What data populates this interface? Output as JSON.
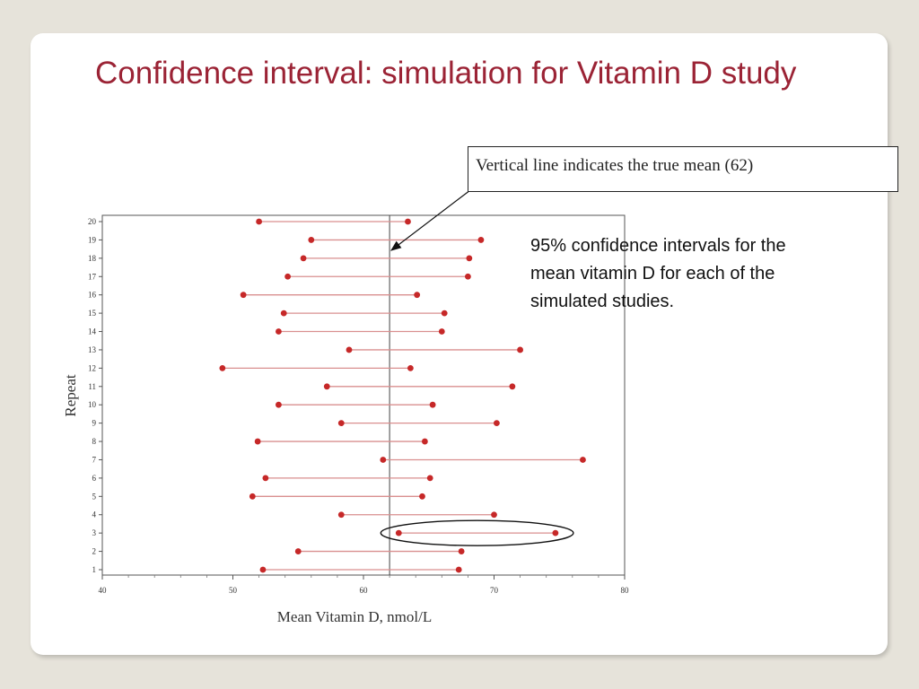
{
  "slide": {
    "title": "Confidence interval: simulation for Vitamin D study",
    "callout": "Vertical line indicates the true mean (62)",
    "annotation": "95% confidence intervals for the mean vitamin D for each of the simulated studies."
  },
  "colors": {
    "title": "#9b2335",
    "interval": "#c62828",
    "interval_line": "#d98f8f",
    "background": "#e6e3da"
  },
  "chart_data": {
    "type": "interval",
    "title": "",
    "xlabel": "Mean Vitamin D, nmol/L",
    "ylabel": "Repeat",
    "xlim": [
      40,
      80
    ],
    "xticks": [
      40,
      50,
      60,
      70,
      80
    ],
    "reference_line": {
      "x": 62
    },
    "highlighted_repeat": 3,
    "intervals": [
      {
        "repeat": 1,
        "lower": 52.3,
        "upper": 67.3
      },
      {
        "repeat": 2,
        "lower": 55.0,
        "upper": 67.5
      },
      {
        "repeat": 3,
        "lower": 62.7,
        "upper": 74.7
      },
      {
        "repeat": 4,
        "lower": 58.3,
        "upper": 70.0
      },
      {
        "repeat": 5,
        "lower": 51.5,
        "upper": 64.5
      },
      {
        "repeat": 6,
        "lower": 52.5,
        "upper": 65.1
      },
      {
        "repeat": 7,
        "lower": 61.5,
        "upper": 76.8
      },
      {
        "repeat": 8,
        "lower": 51.9,
        "upper": 64.7
      },
      {
        "repeat": 9,
        "lower": 58.3,
        "upper": 70.2
      },
      {
        "repeat": 10,
        "lower": 53.5,
        "upper": 65.3
      },
      {
        "repeat": 11,
        "lower": 57.2,
        "upper": 71.4
      },
      {
        "repeat": 12,
        "lower": 49.2,
        "upper": 63.6
      },
      {
        "repeat": 13,
        "lower": 58.9,
        "upper": 72.0
      },
      {
        "repeat": 14,
        "lower": 53.5,
        "upper": 66.0
      },
      {
        "repeat": 15,
        "lower": 53.9,
        "upper": 66.2
      },
      {
        "repeat": 16,
        "lower": 50.8,
        "upper": 64.1
      },
      {
        "repeat": 17,
        "lower": 54.2,
        "upper": 68.0
      },
      {
        "repeat": 18,
        "lower": 55.4,
        "upper": 68.1
      },
      {
        "repeat": 19,
        "lower": 56.0,
        "upper": 69.0
      },
      {
        "repeat": 20,
        "lower": 52.0,
        "upper": 63.4
      }
    ]
  }
}
